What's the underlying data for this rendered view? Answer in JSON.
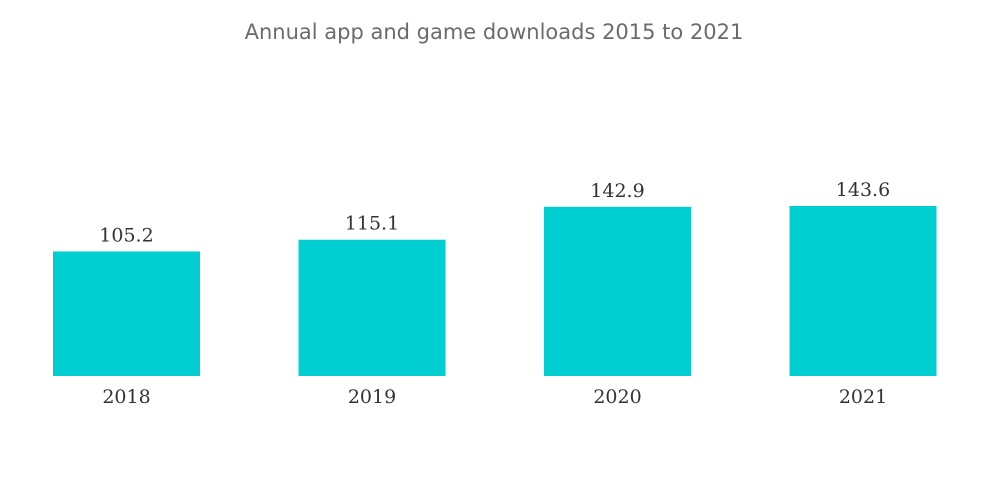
{
  "chart_data": {
    "type": "bar",
    "title": "Annual app and game downloads 2015 to 2021",
    "categories": [
      "2018",
      "2019",
      "2020",
      "2021"
    ],
    "values": [
      105.2,
      115.1,
      142.9,
      143.6
    ],
    "value_labels": [
      "105.2",
      "115.1",
      "142.9",
      "143.6"
    ],
    "xlabel": "",
    "ylabel": "",
    "ylim": [
      0,
      143.6
    ],
    "grid": false,
    "legend": "none",
    "bar_color": "#00CED1"
  }
}
